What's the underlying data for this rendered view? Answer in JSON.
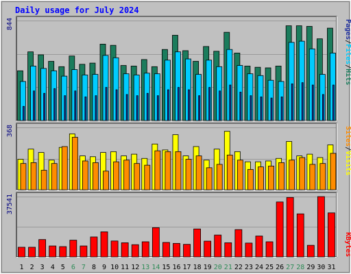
{
  "title": "Daily usage for July 2024",
  "colors": {
    "background": "#c0c0c0",
    "plot_background": "#c0c0c0",
    "grid": "#9a9a9a",
    "title": "#0000ff",
    "axis_max_label": "#000080",
    "day_label": "#000000",
    "weekend_day_label": "#2e8b57",
    "hits": "#1b7c5c",
    "files": "#00ccff",
    "pages": "#2030a0",
    "visits": "#ffff00",
    "sites": "#ff8c00",
    "kbytes": "#ff0000"
  },
  "chart_data": [
    {
      "type": "bar",
      "panel": "hits-files-pages",
      "categories": [
        "1",
        "2",
        "3",
        "4",
        "5",
        "6",
        "7",
        "8",
        "9",
        "10",
        "11",
        "12",
        "13",
        "14",
        "15",
        "16",
        "17",
        "18",
        "19",
        "20",
        "21",
        "22",
        "23",
        "24",
        "25",
        "26",
        "27",
        "28",
        "29",
        "30",
        "31"
      ],
      "weekend_days": [
        "6",
        "7",
        "13",
        "14",
        "20",
        "21",
        "27",
        "28"
      ],
      "ymax_label": "844",
      "ylim": [
        0,
        844
      ],
      "legend": [
        "Pages",
        "Files",
        "Hits"
      ],
      "legend_separator": "/",
      "series": [
        {
          "name": "Hits",
          "values": [
            420,
            580,
            555,
            500,
            455,
            545,
            475,
            485,
            645,
            635,
            465,
            460,
            515,
            455,
            600,
            720,
            590,
            500,
            625,
            585,
            745,
            570,
            460,
            450,
            445,
            460,
            800,
            800,
            795,
            690,
            780
          ]
        },
        {
          "name": "Files",
          "values": [
            330,
            460,
            440,
            420,
            375,
            430,
            385,
            390,
            550,
            530,
            395,
            385,
            400,
            395,
            510,
            580,
            520,
            390,
            510,
            455,
            600,
            465,
            395,
            380,
            340,
            330,
            660,
            670,
            605,
            390,
            570
          ]
        },
        {
          "name": "Pages",
          "values": [
            120,
            250,
            230,
            270,
            210,
            250,
            200,
            210,
            280,
            260,
            220,
            210,
            230,
            210,
            260,
            280,
            260,
            210,
            280,
            250,
            300,
            240,
            210,
            200,
            190,
            200,
            310,
            320,
            300,
            220,
            300
          ]
        }
      ]
    },
    {
      "type": "bar",
      "panel": "visits-sites",
      "categories": [
        "1",
        "2",
        "3",
        "4",
        "5",
        "6",
        "7",
        "8",
        "9",
        "10",
        "11",
        "12",
        "13",
        "14",
        "15",
        "16",
        "17",
        "18",
        "19",
        "20",
        "21",
        "22",
        "23",
        "24",
        "25",
        "26",
        "27",
        "28",
        "29",
        "30",
        "31"
      ],
      "weekend_days": [
        "6",
        "7",
        "13",
        "14",
        "20",
        "21",
        "27",
        "28"
      ],
      "ymax_label": "368",
      "ylim": [
        0,
        368
      ],
      "legend": [
        "Sites",
        "Visits"
      ],
      "legend_separator": "/",
      "series": [
        {
          "name": "Visits",
          "values": [
            180,
            240,
            220,
            175,
            250,
            330,
            200,
            195,
            220,
            225,
            200,
            210,
            185,
            270,
            235,
            325,
            200,
            255,
            175,
            240,
            345,
            225,
            165,
            165,
            170,
            185,
            285,
            200,
            210,
            190,
            265
          ]
        },
        {
          "name": "Sites",
          "values": [
            155,
            160,
            115,
            155,
            255,
            310,
            170,
            160,
            110,
            165,
            175,
            155,
            145,
            230,
            225,
            225,
            180,
            200,
            130,
            150,
            205,
            175,
            120,
            135,
            140,
            160,
            175,
            190,
            150,
            155,
            215
          ]
        }
      ]
    },
    {
      "type": "bar",
      "panel": "kbytes",
      "categories": [
        "1",
        "2",
        "3",
        "4",
        "5",
        "6",
        "7",
        "8",
        "9",
        "10",
        "11",
        "12",
        "13",
        "14",
        "15",
        "16",
        "17",
        "18",
        "19",
        "20",
        "21",
        "22",
        "23",
        "24",
        "25",
        "26",
        "27",
        "28",
        "29",
        "30",
        "31"
      ],
      "weekend_days": [
        "6",
        "7",
        "13",
        "14",
        "20",
        "21",
        "27",
        "28"
      ],
      "ymax_label": "37541",
      "ylim": [
        0,
        37541
      ],
      "legend": [
        "KBytes"
      ],
      "series": [
        {
          "name": "KBytes",
          "values": [
            6000,
            6000,
            10800,
            6800,
            6400,
            10400,
            6800,
            12400,
            15600,
            9900,
            8800,
            7600,
            9400,
            18200,
            9000,
            8400,
            7800,
            17400,
            9800,
            13600,
            8800,
            17000,
            8600,
            13000,
            9400,
            34200,
            37000,
            26800,
            7200,
            37541,
            27400
          ]
        }
      ]
    }
  ]
}
